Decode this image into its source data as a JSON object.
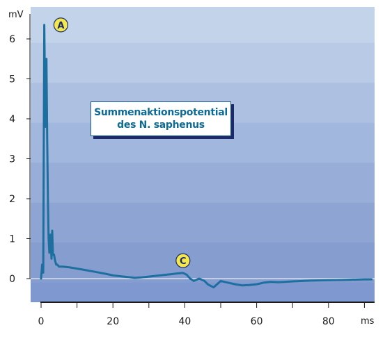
{
  "chart_data": {
    "type": "line",
    "title_lines": [
      "Summenaktionspotential",
      "des N. saphenus"
    ],
    "x_unit": "ms",
    "y_unit": "mV",
    "x_ticks": [
      0,
      20,
      40,
      60,
      80
    ],
    "y_ticks": [
      0,
      1,
      2,
      3,
      4,
      5,
      6
    ],
    "xlim": [
      -3,
      92
    ],
    "ylim": [
      -0.6,
      6.8
    ],
    "grid": false,
    "line_color": "#1d6fa0",
    "markers": [
      {
        "label": "A",
        "x": 5.5,
        "y": 6.35
      },
      {
        "label": "C",
        "x": 39.5,
        "y": 0.45
      }
    ],
    "series": [
      {
        "x": [
          0,
          0.3,
          0.6,
          0.9,
          1.2,
          1.5,
          1.7,
          1.9,
          2.1,
          2.3,
          2.6,
          2.9,
          3.1,
          3.3,
          3.6,
          3.9,
          4.2,
          4.5,
          5,
          6,
          8,
          10,
          12,
          15,
          18,
          20,
          23,
          26,
          28,
          30,
          33,
          36,
          38,
          39.5,
          40.5,
          41.5,
          42.5,
          44,
          45.5,
          46.5,
          48,
          49,
          50,
          52,
          54,
          56,
          58,
          60,
          62,
          64,
          66,
          70,
          75,
          80,
          85,
          90,
          92
        ],
        "y": [
          0,
          0.35,
          0.15,
          6.35,
          3.8,
          5.5,
          3.5,
          2.0,
          1.0,
          0.65,
          1.1,
          0.5,
          1.2,
          0.6,
          0.6,
          0.45,
          0.35,
          0.35,
          0.3,
          0.3,
          0.28,
          0.25,
          0.22,
          0.17,
          0.12,
          0.08,
          0.05,
          0.02,
          0.03,
          0.05,
          0.08,
          0.11,
          0.13,
          0.14,
          0.1,
          0.0,
          -0.06,
          0.0,
          -0.06,
          -0.15,
          -0.22,
          -0.14,
          -0.06,
          -0.1,
          -0.14,
          -0.17,
          -0.16,
          -0.14,
          -0.1,
          -0.08,
          -0.09,
          -0.07,
          -0.05,
          -0.04,
          -0.03,
          -0.02,
          -0.02
        ]
      }
    ]
  }
}
